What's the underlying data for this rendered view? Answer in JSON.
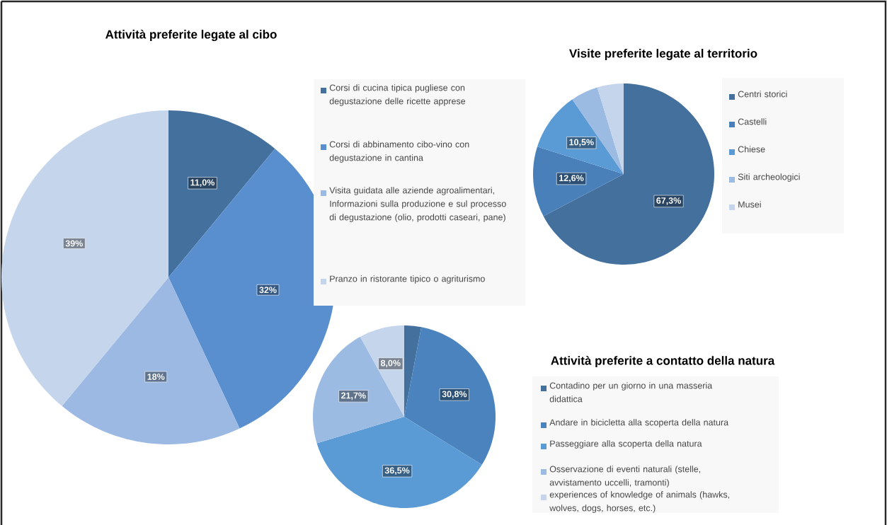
{
  "chart_data": [
    {
      "type": "pie",
      "title": "Attività preferite legate al cibo",
      "categories": [
        "Corsi di cucina tipica pugliese con degustazione delle ricette apprese",
        "Corsi di abbinamento cibo-vino con degustazione in cantina",
        "Visita guidata alle aziende agroalimentari, Informazioni sulla produzione e sul processo di degustazione (olio, prodotti caseari, pane)",
        "Pranzo in ristorante tipico o agriturismo"
      ],
      "values": [
        11.0,
        32,
        18,
        39
      ],
      "colors": [
        "#44709e",
        "#5a8fcf",
        "#9bb9e3",
        "#c5d5ec"
      ],
      "value_labels": [
        "11,0%",
        "32%",
        "18%",
        "39%"
      ],
      "legend": "right"
    },
    {
      "type": "pie",
      "title": "Visite preferite legate al territorio",
      "categories": [
        "Centri storici",
        "Castelli",
        "Chiese",
        "Siti archeologici",
        "Musei"
      ],
      "values": [
        67.3,
        12.6,
        10.5,
        4.9,
        4.7
      ],
      "colors": [
        "#44709e",
        "#4a80ba",
        "#5b9bd5",
        "#9bbbe3",
        "#c5d5ec"
      ],
      "value_labels": [
        "67,3%",
        "12,6%",
        "10,5%",
        null,
        null
      ],
      "legend": "right"
    },
    {
      "type": "pie",
      "title": "Attività preferite a contatto della natura",
      "categories": [
        "Contadino per un giorno in una masseria didattica",
        "Andare in bicicletta alla scoperta della natura",
        "Passeggiare alla scoperta della natura",
        "Osservazione di eventi naturali (stelle, avvistamento uccelli, tramonti)",
        "experiences of knowledge of animals (hawks, wolves, dogs, horses, etc.)"
      ],
      "values": [
        3.0,
        30.8,
        36.5,
        21.7,
        8.0
      ],
      "colors": [
        "#44709e",
        "#4a83bd",
        "#5b9bd5",
        "#9bbbe3",
        "#c5d5ec"
      ],
      "value_labels": [
        null,
        "30,8%",
        "36,5%",
        "21,7%",
        "8,0%"
      ],
      "legend": "right"
    }
  ]
}
